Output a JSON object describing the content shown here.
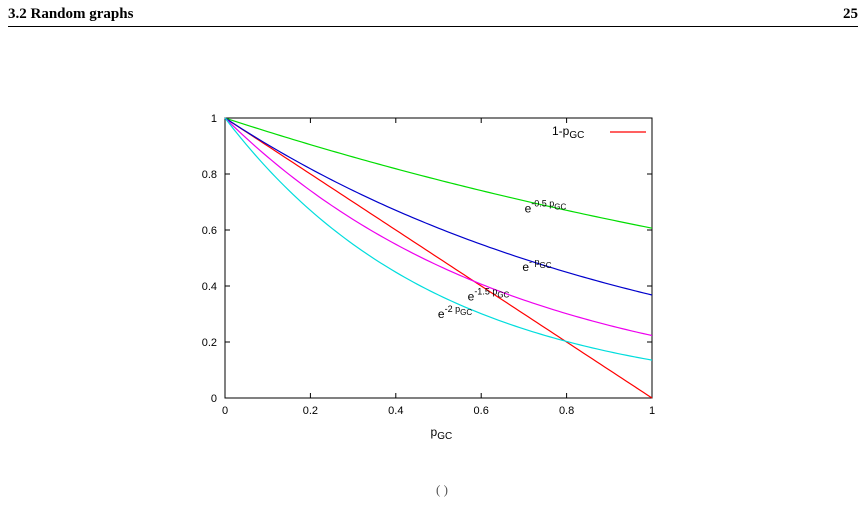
{
  "header": {
    "section": "3.2 Random graphs",
    "page_number": "25"
  },
  "figure": {
    "footer_fragment": "( )"
  },
  "chart_data": {
    "type": "line",
    "xlabel": "p_GC",
    "ylabel": "",
    "xlim": [
      0,
      1
    ],
    "ylim": [
      0,
      1
    ],
    "x_ticks": [
      "0",
      "0.2",
      "0.4",
      "0.6",
      "0.8",
      "1"
    ],
    "y_ticks": [
      "0",
      "0.2",
      "0.4",
      "0.6",
      "0.8",
      "1"
    ],
    "grid": false,
    "legend": {
      "position": "top-right",
      "entries": [
        "1-p_GC"
      ]
    },
    "series": [
      {
        "name": "1-p_GC",
        "color": "#ff0000",
        "function": "1-x",
        "x": [
          0,
          0.2,
          0.4,
          0.6,
          0.8,
          1.0
        ],
        "y": [
          1,
          0.8,
          0.6,
          0.4,
          0.2,
          0
        ]
      },
      {
        "name": "e^(-0.5 p_GC)",
        "color": "#00dd00",
        "function": "exp(-0.5x)",
        "x": [
          0,
          0.2,
          0.4,
          0.6,
          0.8,
          1.0
        ],
        "y": [
          1,
          0.905,
          0.819,
          0.741,
          0.67,
          0.607
        ]
      },
      {
        "name": "e^(- p_GC)",
        "color": "#0000cc",
        "function": "exp(-x)",
        "x": [
          0,
          0.2,
          0.4,
          0.6,
          0.8,
          1.0
        ],
        "y": [
          1,
          0.819,
          0.67,
          0.549,
          0.449,
          0.368
        ]
      },
      {
        "name": "e^(-1.5 p_GC)",
        "color": "#ee00ee",
        "function": "exp(-1.5x)",
        "x": [
          0,
          0.2,
          0.4,
          0.6,
          0.8,
          1.0
        ],
        "y": [
          1,
          0.741,
          0.549,
          0.407,
          0.301,
          0.223
        ]
      },
      {
        "name": "e^(-2 p_GC)",
        "color": "#00dddd",
        "function": "exp(-2x)",
        "x": [
          0,
          0.2,
          0.4,
          0.6,
          0.8,
          1.0
        ],
        "y": [
          1,
          0.67,
          0.449,
          0.301,
          0.202,
          0.135
        ]
      }
    ],
    "annotations": [
      {
        "series": 1,
        "base": "e",
        "sup": "-0.5 p",
        "sub": "GC",
        "at_x": 0.8
      },
      {
        "series": 2,
        "base": "e",
        "sup": "- p",
        "sub": "GC",
        "at_x": 0.79
      },
      {
        "series": 3,
        "base": "e",
        "sup": "-1.5 p",
        "sub": "GC",
        "at_x": 0.69
      },
      {
        "series": 4,
        "base": "e",
        "sup": "-2 p",
        "sub": "GC",
        "at_x": 0.59
      }
    ]
  }
}
